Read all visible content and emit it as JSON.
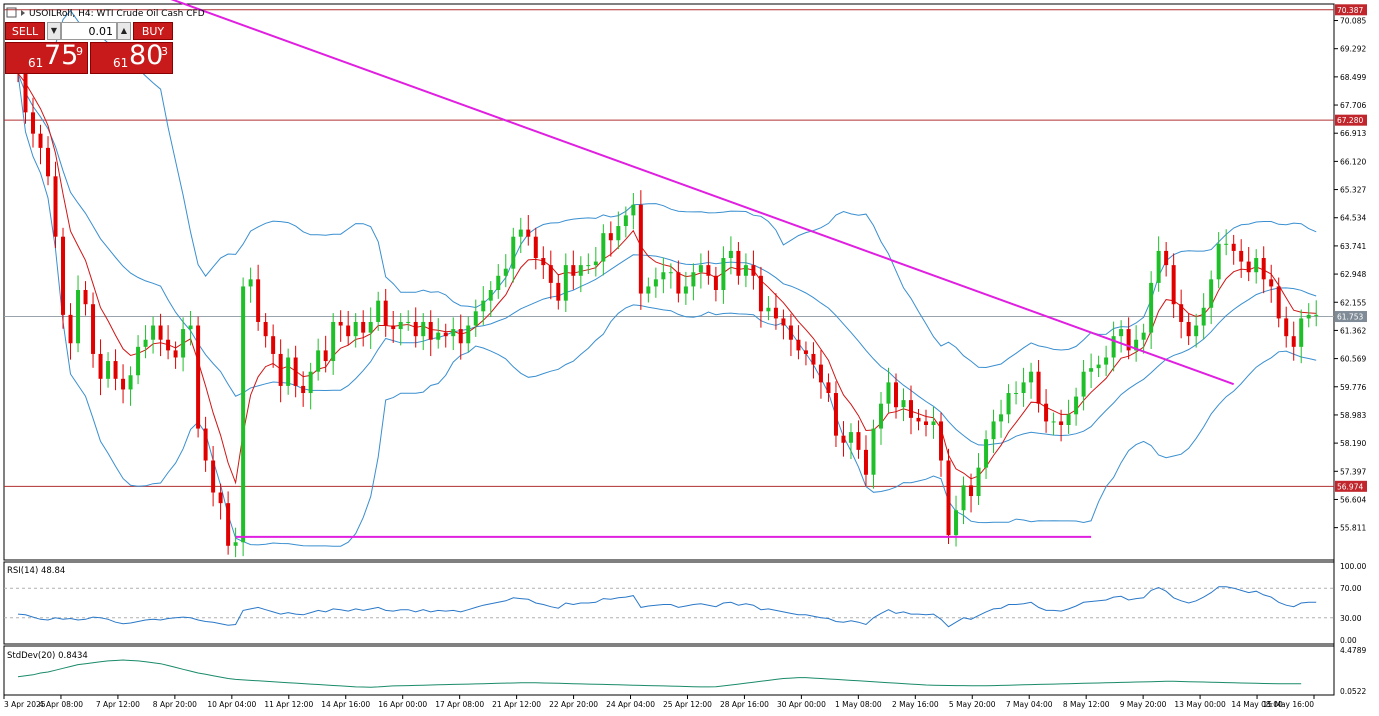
{
  "header": {
    "symbol_title": "USOILRoll, H4: WTI Crude Oil Cash CFD"
  },
  "trade_panel": {
    "sell_label": "SELL",
    "buy_label": "BUY",
    "lot": "0.01",
    "bid_small": "61",
    "bid_big": "75",
    "bid_sup": "9",
    "ask_small": "61",
    "ask_big": "80",
    "ask_sup": "3"
  },
  "colors": {
    "bull": "#1fbf2a",
    "bear": "#e00000",
    "bands": "#3a8fd0",
    "ma": "#d01515",
    "trendline": "#e020e0",
    "hline": "#b03030",
    "rsi": "#2a78c8",
    "stddev": "#1a8a6a"
  },
  "chart_data": [
    {
      "type": "candlestick",
      "title": "USOILRoll, H4: WTI Crude Oil Cash CFD",
      "ylim": [
        54.9,
        70.55
      ],
      "y_ticks": [
        "70.085",
        "69.292",
        "68.499",
        "67.706",
        "66.913",
        "66.120",
        "65.327",
        "64.534",
        "63.741",
        "62.948",
        "62.155",
        "61.362",
        "60.569",
        "59.776",
        "58.983",
        "58.190",
        "57.397",
        "56.604",
        "55.811"
      ],
      "x_ticks": [
        "3 Apr 2025",
        "4 Apr 08:00",
        "7 Apr 12:00",
        "8 Apr 20:00",
        "10 Apr 04:00",
        "11 Apr 12:00",
        "14 Apr 16:00",
        "16 Apr 00:00",
        "17 Apr 08:00",
        "21 Apr 12:00",
        "22 Apr 20:00",
        "24 Apr 04:00",
        "25 Apr 12:00",
        "28 Apr 16:00",
        "30 Apr 00:00",
        "1 May 08:00",
        "2 May 16:00",
        "5 May 20:00",
        "7 May 04:00",
        "8 May 12:00",
        "9 May 20:00",
        "13 May 00:00",
        "14 May 08:00",
        "15 May 16:00"
      ],
      "horizontal_levels": [
        {
          "label": "70.387",
          "value": 70.387
        },
        {
          "label": "67.280",
          "value": 67.28
        },
        {
          "label": "61.753",
          "value": 61.753
        },
        {
          "label": "56.974",
          "value": 56.974
        }
      ],
      "current_price": "61.753",
      "close": [
        68.6,
        67.5,
        66.9,
        66.5,
        65.7,
        64.0,
        61.8,
        61.0,
        62.5,
        62.1,
        60.7,
        60.0,
        60.5,
        60.0,
        59.7,
        60.1,
        60.9,
        61.1,
        61.5,
        61.1,
        60.8,
        60.6,
        61.4,
        61.5,
        58.6,
        57.7,
        56.8,
        56.5,
        55.3,
        55.4,
        62.6,
        62.8,
        61.6,
        61.2,
        60.7,
        59.8,
        60.6,
        59.8,
        59.6,
        60.2,
        60.8,
        60.5,
        61.6,
        61.5,
        61.2,
        61.6,
        61.3,
        61.6,
        62.2,
        61.5,
        61.4,
        61.6,
        61.6,
        61.2,
        61.6,
        61.1,
        61.3,
        61.2,
        61.4,
        61.0,
        61.5,
        61.9,
        62.2,
        62.5,
        62.9,
        63.1,
        64.0,
        64.2,
        64.0,
        63.4,
        63.2,
        62.7,
        62.2,
        63.2,
        62.9,
        63.2,
        63.2,
        63.3,
        64.1,
        63.9,
        64.3,
        64.6,
        64.9,
        62.4,
        62.6,
        62.8,
        63.0,
        63.0,
        62.4,
        62.6,
        63.0,
        63.2,
        62.9,
        62.5,
        63.4,
        63.6,
        62.9,
        63.2,
        62.9,
        61.9,
        62.0,
        61.7,
        61.5,
        61.1,
        60.8,
        60.7,
        60.4,
        59.9,
        59.6,
        58.4,
        58.2,
        58.5,
        58.0,
        57.3,
        58.6,
        59.3,
        59.9,
        59.2,
        59.4,
        58.9,
        58.8,
        58.7,
        58.8,
        57.7,
        55.6,
        56.3,
        57.0,
        56.7,
        57.5,
        58.3,
        58.8,
        59.0,
        59.6,
        59.6,
        59.9,
        60.2,
        59.3,
        58.8,
        58.8,
        58.7,
        59.0,
        59.5,
        60.2,
        60.3,
        60.4,
        60.6,
        61.2,
        61.4,
        60.8,
        61.1,
        61.3,
        62.7,
        63.6,
        63.2,
        62.1,
        61.6,
        61.2,
        61.5,
        62.0,
        62.8,
        63.8,
        63.8,
        63.6,
        63.3,
        63.0,
        63.4,
        62.8,
        62.6,
        61.7,
        61.2,
        60.9,
        61.7,
        61.8,
        61.8
      ],
      "bollinger_bands": {
        "period": 20
      },
      "trendlines": [
        {
          "from": [
            0,
            70.8
          ],
          "to": [
            162,
            59.85
          ]
        },
        {
          "from": [
            29,
            55.55
          ],
          "to": [
            143,
            55.55
          ]
        }
      ]
    },
    {
      "type": "line",
      "title": "RSI(14) 48.84",
      "ylim": [
        0,
        100
      ],
      "y_ticks": [
        "100.00",
        "70.00",
        "30.00",
        "0.00"
      ],
      "reference_levels": [
        70,
        30
      ],
      "values": [
        35,
        34,
        31,
        28,
        27,
        30,
        28,
        29,
        27,
        28,
        31,
        30,
        28,
        24,
        22,
        23,
        25,
        27,
        28,
        27,
        29,
        30,
        31,
        30,
        27,
        25,
        24,
        22,
        20,
        21,
        40,
        42,
        44,
        41,
        38,
        35,
        37,
        35,
        34,
        37,
        40,
        38,
        42,
        41,
        39,
        42,
        40,
        42,
        44,
        40,
        39,
        41,
        41,
        38,
        41,
        38,
        40,
        39,
        40,
        38,
        41,
        44,
        47,
        49,
        51,
        53,
        57,
        56,
        55,
        50,
        48,
        45,
        43,
        50,
        48,
        50,
        50,
        51,
        56,
        55,
        57,
        58,
        60,
        44,
        46,
        47,
        48,
        48,
        44,
        46,
        48,
        49,
        47,
        45,
        50,
        51,
        47,
        49,
        47,
        41,
        42,
        40,
        38,
        36,
        34,
        34,
        32,
        30,
        29,
        25,
        24,
        26,
        24,
        21,
        30,
        36,
        41,
        36,
        38,
        35,
        35,
        34,
        35,
        28,
        18,
        24,
        30,
        28,
        33,
        38,
        42,
        43,
        48,
        48,
        49,
        51,
        44,
        40,
        40,
        39,
        42,
        46,
        51,
        52,
        53,
        54,
        58,
        59,
        54,
        56,
        57,
        67,
        71,
        66,
        57,
        53,
        50,
        53,
        58,
        64,
        72,
        72,
        70,
        67,
        64,
        66,
        61,
        58,
        51,
        47,
        45,
        50,
        51,
        51
      ]
    },
    {
      "type": "line",
      "title": "StdDev(20) 0.8434",
      "ylim": [
        0.0522,
        4.4789
      ],
      "y_ticks": [
        "4.4789",
        "0.0522"
      ],
      "values": [
        1.6,
        1.7,
        1.8,
        2.0,
        2.1,
        2.3,
        2.5,
        2.7,
        2.9,
        3.0,
        3.1,
        3.2,
        3.3,
        3.35,
        3.4,
        3.35,
        3.3,
        3.2,
        3.1,
        3.0,
        2.8,
        2.6,
        2.4,
        2.2,
        2.0,
        1.85,
        1.7,
        1.55,
        1.4,
        1.3,
        1.25,
        1.2,
        1.15,
        1.1,
        1.05,
        1.0,
        0.95,
        0.9,
        0.85,
        0.8,
        0.75,
        0.7,
        0.65,
        0.6,
        0.55,
        0.5,
        0.48,
        0.46,
        0.5,
        0.55,
        0.6,
        0.62,
        0.64,
        0.66,
        0.68,
        0.7,
        0.72,
        0.74,
        0.76,
        0.78,
        0.8,
        0.82,
        0.84,
        0.86,
        0.88,
        0.9,
        0.92,
        0.94,
        0.95,
        0.94,
        0.92,
        0.9,
        0.88,
        0.86,
        0.84,
        0.82,
        0.8,
        0.78,
        0.76,
        0.74,
        0.72,
        0.7,
        0.68,
        0.66,
        0.64,
        0.62,
        0.6,
        0.58,
        0.56,
        0.54,
        0.52,
        0.5,
        0.5,
        0.52,
        0.6,
        0.7,
        0.8,
        0.9,
        1.0,
        1.1,
        1.2,
        1.3,
        1.4,
        1.45,
        1.5,
        1.5,
        1.45,
        1.4,
        1.35,
        1.3,
        1.25,
        1.2,
        1.15,
        1.1,
        1.05,
        1.0,
        0.95,
        0.9,
        0.85,
        0.8,
        0.75,
        0.7,
        0.68,
        0.66,
        0.65,
        0.64,
        0.63,
        0.62,
        0.62,
        0.62,
        0.64,
        0.66,
        0.68,
        0.7,
        0.72,
        0.74,
        0.76,
        0.78,
        0.8,
        0.82,
        0.84,
        0.86,
        0.88,
        0.9,
        0.92,
        0.94,
        0.96,
        0.98,
        1.0,
        1.02,
        1.04,
        1.06,
        1.08,
        1.1,
        1.1,
        1.08,
        1.06,
        1.04,
        1.02,
        1.0,
        0.98,
        0.96,
        0.94,
        0.92,
        0.9,
        0.88,
        0.86,
        0.85,
        0.84,
        0.84,
        0.84,
        0.84
      ]
    }
  ]
}
